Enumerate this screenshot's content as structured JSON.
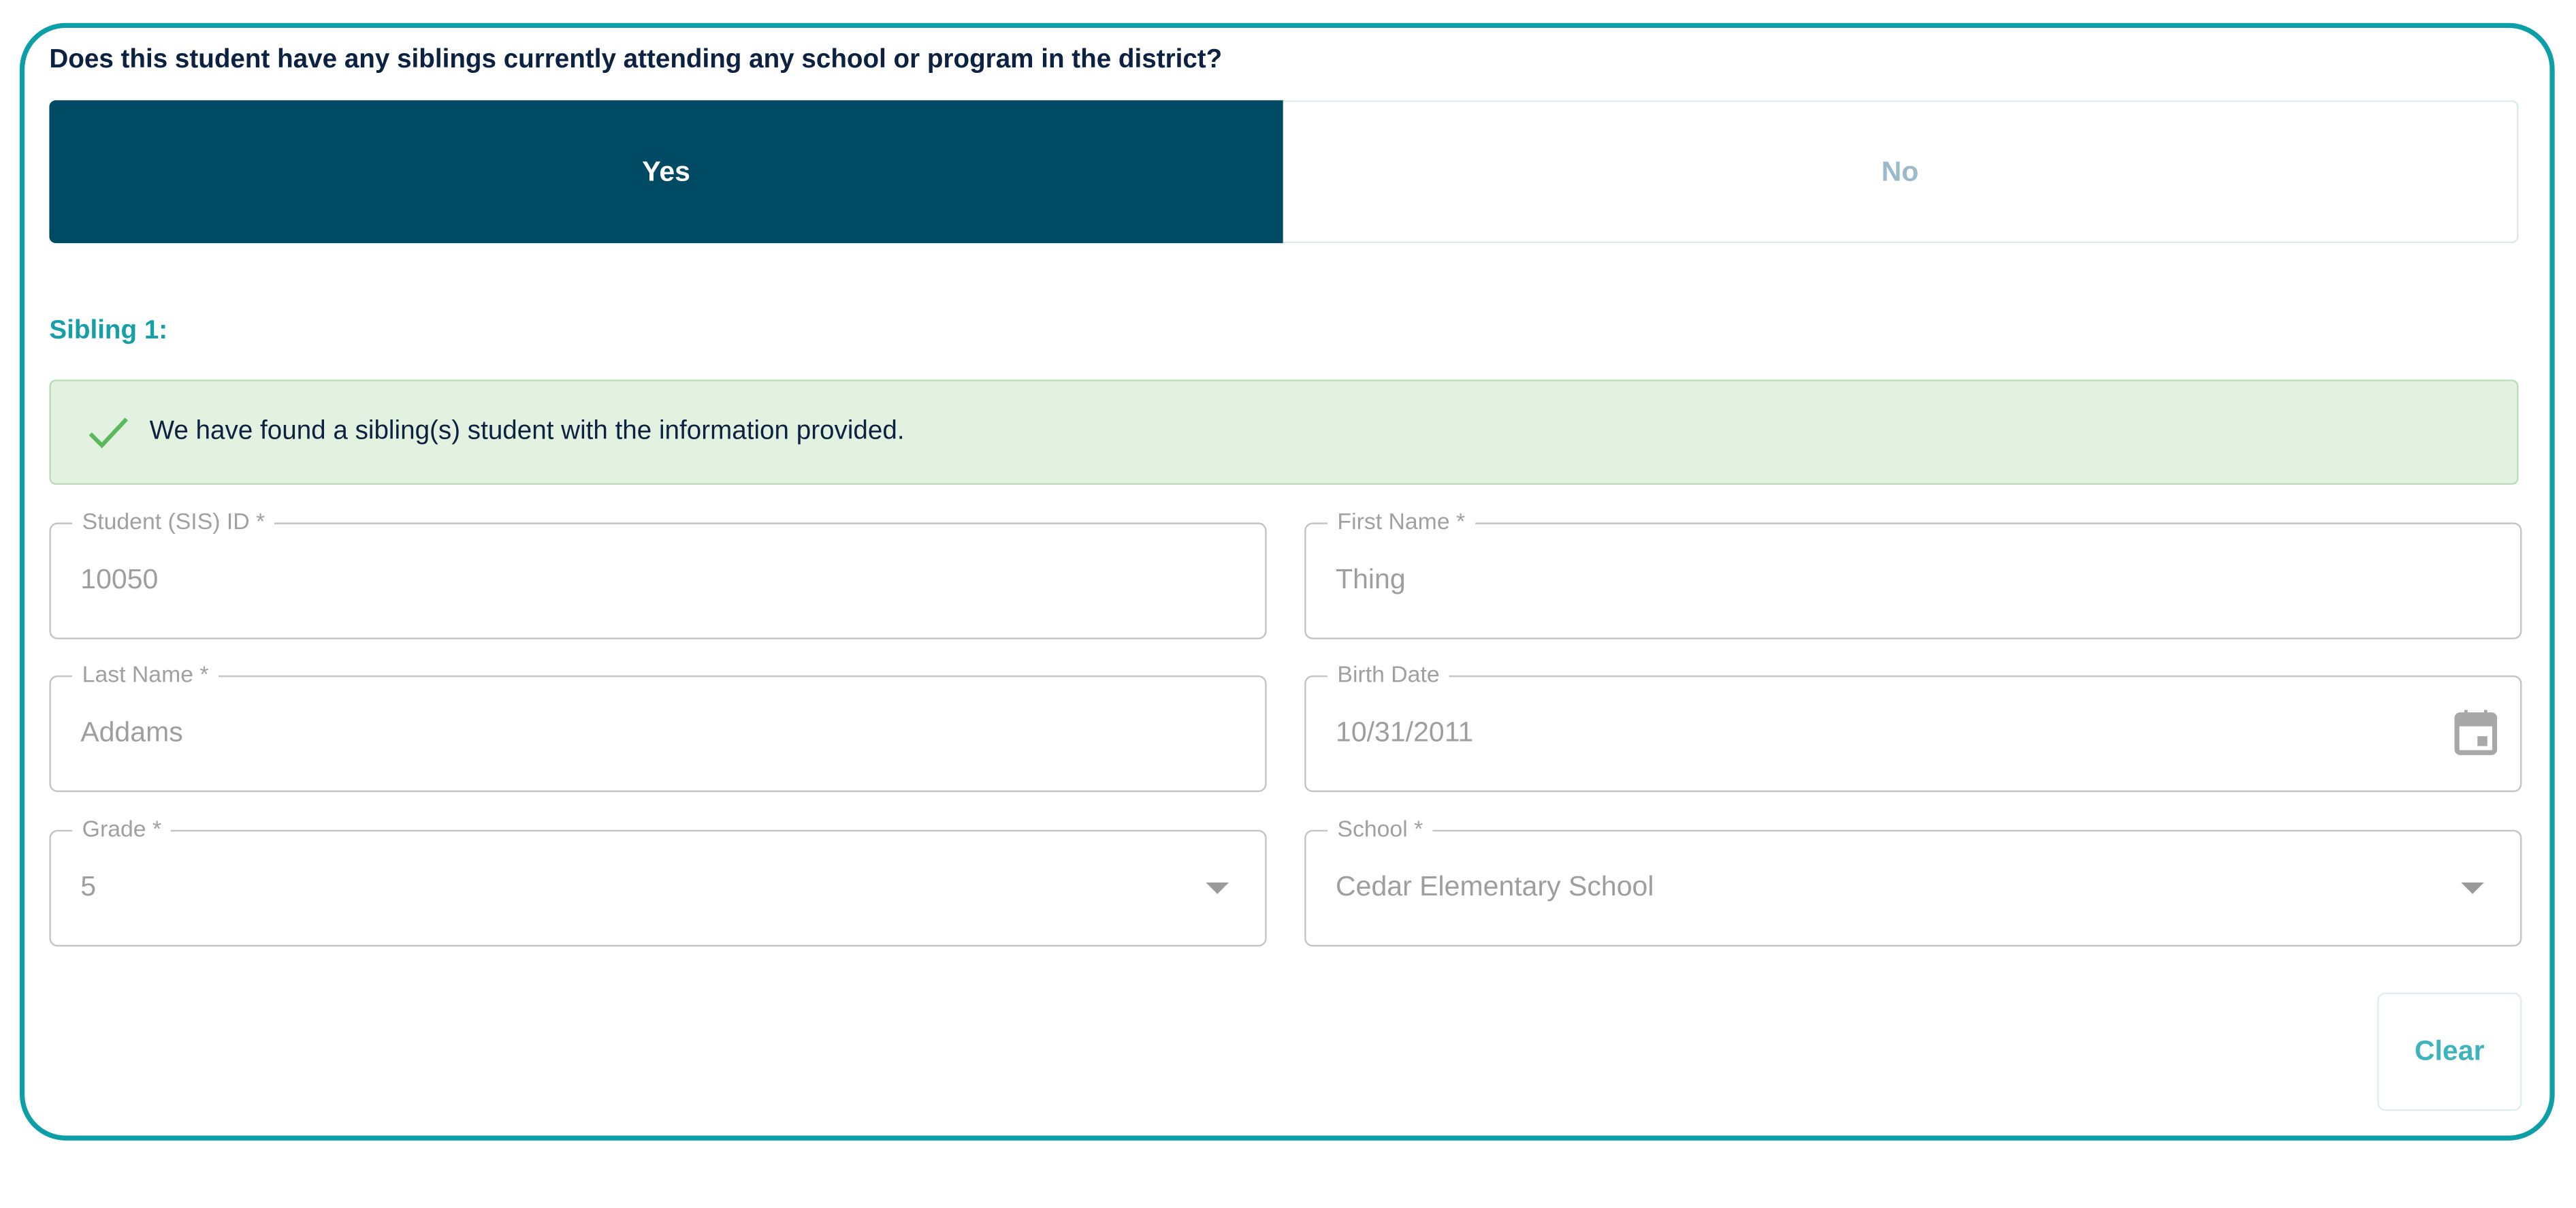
{
  "question": "Does this student have any siblings currently attending any school or program in the district?",
  "toggle": {
    "yes": "Yes",
    "no": "No",
    "selected": "Yes"
  },
  "sibling_heading": "Sibling 1:",
  "alert": {
    "icon": "check-icon",
    "message": "We have found a sibling(s) student with the information provided."
  },
  "fields": {
    "student_id": {
      "label": "Student (SIS) ID *",
      "value": "10050"
    },
    "first_name": {
      "label": "First Name *",
      "value": "Thing"
    },
    "last_name": {
      "label": "Last Name *",
      "value": "Addams"
    },
    "birth_date": {
      "label": "Birth Date",
      "value": "10/31/2011",
      "icon": "calendar-icon"
    },
    "grade": {
      "label": "Grade *",
      "value": "5",
      "icon": "chevron-down-icon"
    },
    "school": {
      "label": "School *",
      "value": "Cedar Elementary School",
      "icon": "chevron-down-icon"
    }
  },
  "clear_label": "Clear",
  "colors": {
    "accent": "#0d9fa7",
    "selected": "#014a63",
    "success_bg": "#e3f1e1",
    "success_icon": "#5cb85c"
  }
}
